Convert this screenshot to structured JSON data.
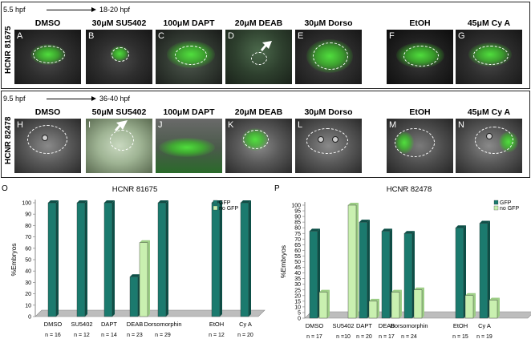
{
  "top_panel": {
    "stage_from": "5.5 hpf",
    "stage_to": "18-20 hpf",
    "enhancer": "HCNR 81675",
    "treatments": [
      {
        "letter": "A",
        "label": "DMSO"
      },
      {
        "letter": "B",
        "label": "30μM SU5402"
      },
      {
        "letter": "C",
        "label": "100μM DAPT"
      },
      {
        "letter": "D",
        "label": "20μM DEAB"
      },
      {
        "letter": "E",
        "label": "30μM Dorso"
      },
      {
        "letter": "F",
        "label": "EtOH"
      },
      {
        "letter": "G",
        "label": "45μM Cy A"
      }
    ]
  },
  "bottom_panel": {
    "stage_from": "9.5 hpf",
    "stage_to": "36-40 hpf",
    "enhancer": "HCNR 82478",
    "treatments": [
      {
        "letter": "H",
        "label": "DMSO"
      },
      {
        "letter": "I",
        "label": "50μM SU5402"
      },
      {
        "letter": "J",
        "label": "100μM DAPT"
      },
      {
        "letter": "K",
        "label": "20μM DEAB"
      },
      {
        "letter": "L",
        "label": "30μM Dorso"
      },
      {
        "letter": "M",
        "label": "EtOH"
      },
      {
        "letter": "N",
        "label": "45μM Cy A"
      }
    ]
  },
  "colors": {
    "gfp": "#1b7a6e",
    "no_gfp": "#c9f0b0"
  },
  "chart_data": [
    {
      "panel": "O",
      "type": "bar",
      "title": "HCNR 81675",
      "ylabel": "%Embryos",
      "ylim": [
        0,
        100
      ],
      "yticks": [
        0,
        10,
        20,
        30,
        40,
        50,
        60,
        70,
        80,
        90,
        100
      ],
      "legend": [
        "GFP",
        "no GFP"
      ],
      "categories": [
        "DMSO",
        "SU5402",
        "DAPT",
        "DEAB",
        "Dorsomorphin",
        "EtOH",
        "Cy A"
      ],
      "n_labels": [
        "n = 16",
        "n = 12",
        "n = 14",
        "n = 23",
        "n = 29",
        "n = 12",
        "n = 20"
      ],
      "series": [
        {
          "name": "GFP",
          "values": [
            100,
            100,
            100,
            35,
            100,
            100,
            100
          ]
        },
        {
          "name": "no GFP",
          "values": [
            0,
            0,
            0,
            65,
            0,
            0,
            0
          ]
        }
      ]
    },
    {
      "panel": "P",
      "type": "bar",
      "title": "HCNR 82478",
      "ylabel": "%Embryos",
      "ylim": [
        0,
        100
      ],
      "yticks": [
        0,
        5,
        10,
        15,
        20,
        25,
        30,
        35,
        40,
        45,
        50,
        55,
        60,
        65,
        70,
        75,
        80,
        85,
        90,
        95,
        100
      ],
      "legend": [
        "GFP",
        "no GFP"
      ],
      "categories": [
        "DMSO",
        "SU5402",
        "DAPT",
        "DEAB",
        "Dorsomorphin",
        "EtOH",
        "Cy A"
      ],
      "n_labels": [
        "n = 17",
        "n =10",
        "n = 20",
        "n = 17",
        "n = 24",
        "n = 15",
        "n = 19"
      ],
      "series": [
        {
          "name": "GFP",
          "values": [
            77,
            0,
            85,
            77,
            75,
            80,
            84
          ]
        },
        {
          "name": "no GFP",
          "values": [
            23,
            100,
            15,
            23,
            25,
            20,
            16
          ]
        }
      ]
    }
  ]
}
